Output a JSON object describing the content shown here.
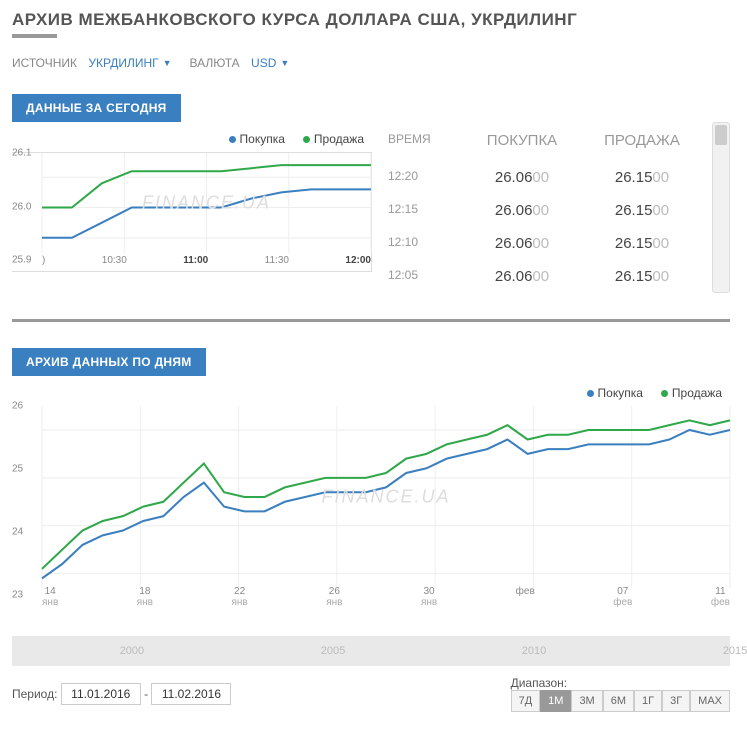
{
  "page_title": "АРХИВ МЕЖБАНКОВСКОГО КУРСА ДОЛЛАРА США, УКРДИЛИНГ",
  "filters": {
    "source_label": "ИСТОЧНИК",
    "source_value": "УКРДИЛИНГ",
    "currency_label": "ВАЛЮТА",
    "currency_value": "USD"
  },
  "colors": {
    "buy": "#3a7fbf",
    "sell": "#2fa84a",
    "grid": "#eeeeee",
    "axis": "#888888"
  },
  "today": {
    "tab_label": "ДАННЫЕ ЗА СЕГОДНЯ",
    "legend_buy": "Покупка",
    "legend_sell": "Продажа",
    "watermark": "FINANCE.UA",
    "chart": {
      "type": "line",
      "y_ticks": [
        "26.1",
        "26.0",
        "25.9"
      ],
      "y_min": 25.85,
      "y_max": 26.18,
      "x_ticks": [
        {
          "label": ")",
          "bold": false
        },
        {
          "label": "10:30",
          "bold": false
        },
        {
          "label": "11:00",
          "bold": true
        },
        {
          "label": "11:30",
          "bold": false
        },
        {
          "label": "12:00",
          "bold": true
        }
      ],
      "buy": [
        25.9,
        25.9,
        25.95,
        26.0,
        26.0,
        26.0,
        26.0,
        26.03,
        26.05,
        26.06,
        26.06,
        26.06
      ],
      "sell": [
        26.0,
        26.0,
        26.08,
        26.12,
        26.12,
        26.12,
        26.12,
        26.13,
        26.14,
        26.14,
        26.14,
        26.14
      ]
    },
    "table": {
      "head_time": "ВРЕМЯ",
      "head_buy": "ПОКУПКА",
      "head_sell": "ПРОДАЖА",
      "rows": [
        {
          "time": "12:20",
          "buy_main": "26.06",
          "buy_dim": "00",
          "sell_main": "26.15",
          "sell_dim": "00"
        },
        {
          "time": "12:15",
          "buy_main": "26.06",
          "buy_dim": "00",
          "sell_main": "26.15",
          "sell_dim": "00"
        },
        {
          "time": "12:10",
          "buy_main": "26.06",
          "buy_dim": "00",
          "sell_main": "26.15",
          "sell_dim": "00"
        },
        {
          "time": "12:05",
          "buy_main": "26.06",
          "buy_dim": "00",
          "sell_main": "26.15",
          "sell_dim": "00"
        }
      ]
    }
  },
  "archive": {
    "tab_label": "АРХИВ ДАННЫХ ПО ДНЯМ",
    "legend_buy": "Покупка",
    "legend_sell": "Продажа",
    "watermark": "FINANCE.UA",
    "chart": {
      "type": "line",
      "y_ticks": [
        "26",
        "25",
        "24",
        "23"
      ],
      "y_min": 22.7,
      "y_max": 26.5,
      "x_ticks": [
        {
          "d": "14",
          "m": "янв"
        },
        {
          "d": "18",
          "m": "янв"
        },
        {
          "d": "22",
          "m": "янв"
        },
        {
          "d": "26",
          "m": "янв"
        },
        {
          "d": "30",
          "m": "янв"
        },
        {
          "d": "фев",
          "m": ""
        },
        {
          "d": "07",
          "m": "фев"
        },
        {
          "d": "11",
          "m": "фев"
        }
      ],
      "buy": [
        22.9,
        23.2,
        23.6,
        23.8,
        23.9,
        24.1,
        24.2,
        24.6,
        24.9,
        24.4,
        24.3,
        24.3,
        24.5,
        24.6,
        24.7,
        24.7,
        24.7,
        24.8,
        25.1,
        25.2,
        25.4,
        25.5,
        25.6,
        25.8,
        25.5,
        25.6,
        25.6,
        25.7,
        25.7,
        25.7,
        25.7,
        25.8,
        26.0,
        25.9,
        26.0
      ],
      "sell": [
        23.1,
        23.5,
        23.9,
        24.1,
        24.2,
        24.4,
        24.5,
        24.9,
        25.3,
        24.7,
        24.6,
        24.6,
        24.8,
        24.9,
        25.0,
        25.0,
        25.0,
        25.1,
        25.4,
        25.5,
        25.7,
        25.8,
        25.9,
        26.1,
        25.8,
        25.9,
        25.9,
        26.0,
        26.0,
        26.0,
        26.0,
        26.1,
        26.2,
        26.1,
        26.2
      ]
    },
    "navigator_ticks": [
      "2000",
      "2005",
      "2010",
      "2015"
    ]
  },
  "period": {
    "label": "Период:",
    "from": "11.01.2016",
    "to": "11.02.2016",
    "sep": "-",
    "range_label": "Диапазон:",
    "buttons": [
      "7Д",
      "1М",
      "3М",
      "6М",
      "1Г",
      "3Г",
      "MAX"
    ],
    "active": "1М"
  }
}
